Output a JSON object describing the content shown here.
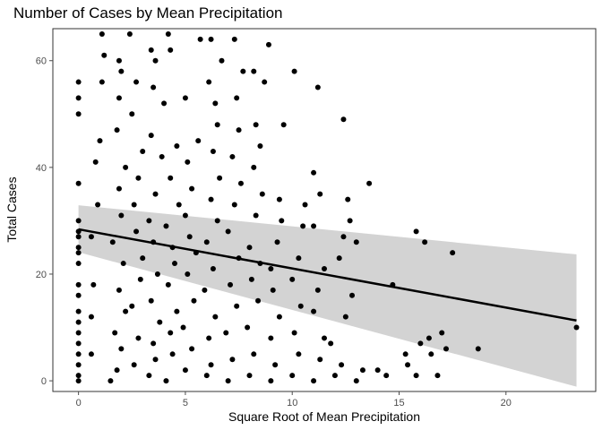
{
  "chart_data": {
    "type": "scatter",
    "title": "Number of Cases by Mean Precipitation",
    "xlabel": "Square Root of Mean Precipitation",
    "ylabel": "Total Cases",
    "xlim": [
      -1.2,
      24.2
    ],
    "ylim": [
      -2,
      66
    ],
    "xticks": [
      0,
      5,
      10,
      15,
      20
    ],
    "yticks": [
      0,
      20,
      40,
      60
    ],
    "grid": false,
    "legend": "none",
    "colors": {
      "points": "#000000",
      "line": "#000000",
      "band": "#d3d3d3",
      "panel_border": "#333333",
      "ticks": "#4d4d4d"
    },
    "trend": {
      "x": [
        0,
        23.3
      ],
      "y": [
        28.4,
        11.3
      ],
      "ci_lower": [
        24.1,
        -1.1
      ],
      "ci_upper": [
        32.9,
        23.7
      ]
    },
    "points": [
      [
        0,
        0
      ],
      [
        0,
        1
      ],
      [
        0,
        3
      ],
      [
        0,
        5
      ],
      [
        0,
        7
      ],
      [
        0,
        9
      ],
      [
        0,
        11
      ],
      [
        0,
        13
      ],
      [
        0,
        16
      ],
      [
        0,
        18
      ],
      [
        0,
        22
      ],
      [
        0,
        24
      ],
      [
        0,
        25
      ],
      [
        0,
        27
      ],
      [
        0,
        28
      ],
      [
        0,
        30
      ],
      [
        0,
        37
      ],
      [
        0,
        50
      ],
      [
        0,
        53
      ],
      [
        0,
        56
      ],
      [
        0.6,
        5
      ],
      [
        0.6,
        12
      ],
      [
        0.7,
        18
      ],
      [
        0.6,
        27
      ],
      [
        0.9,
        33
      ],
      [
        0.8,
        41
      ],
      [
        1.0,
        45
      ],
      [
        1.1,
        56
      ],
      [
        1.2,
        61
      ],
      [
        1.1,
        65
      ],
      [
        1.5,
        0
      ],
      [
        1.8,
        2
      ],
      [
        2.0,
        6
      ],
      [
        1.7,
        9
      ],
      [
        2.2,
        13
      ],
      [
        1.9,
        17
      ],
      [
        2.1,
        22
      ],
      [
        1.6,
        26
      ],
      [
        2.0,
        31
      ],
      [
        1.9,
        36
      ],
      [
        2.2,
        40
      ],
      [
        1.8,
        47
      ],
      [
        1.9,
        53
      ],
      [
        2.0,
        58
      ],
      [
        1.9,
        60
      ],
      [
        2.6,
        3
      ],
      [
        2.8,
        8
      ],
      [
        2.5,
        14
      ],
      [
        2.9,
        19
      ],
      [
        3.0,
        23
      ],
      [
        2.7,
        28
      ],
      [
        2.6,
        33
      ],
      [
        2.8,
        38
      ],
      [
        3.0,
        43
      ],
      [
        2.5,
        50
      ],
      [
        2.7,
        56
      ],
      [
        2.4,
        65
      ],
      [
        3.3,
        1
      ],
      [
        3.6,
        4
      ],
      [
        3.5,
        7
      ],
      [
        3.8,
        11
      ],
      [
        3.4,
        15
      ],
      [
        3.7,
        20
      ],
      [
        3.5,
        26
      ],
      [
        3.3,
        30
      ],
      [
        3.6,
        35
      ],
      [
        3.9,
        42
      ],
      [
        3.4,
        46
      ],
      [
        3.5,
        55
      ],
      [
        3.6,
        60
      ],
      [
        3.4,
        62
      ],
      [
        4.1,
        0
      ],
      [
        4.4,
        5
      ],
      [
        4.3,
        9
      ],
      [
        4.6,
        13
      ],
      [
        4.2,
        18
      ],
      [
        4.5,
        22
      ],
      [
        4.4,
        25
      ],
      [
        4.1,
        29
      ],
      [
        4.7,
        33
      ],
      [
        4.3,
        38
      ],
      [
        4.6,
        44
      ],
      [
        4.0,
        52
      ],
      [
        4.3,
        62
      ],
      [
        4.2,
        65
      ],
      [
        5.0,
        2
      ],
      [
        5.3,
        6
      ],
      [
        4.9,
        10
      ],
      [
        5.4,
        15
      ],
      [
        5.1,
        20
      ],
      [
        5.5,
        24
      ],
      [
        5.2,
        27
      ],
      [
        5.0,
        31
      ],
      [
        5.3,
        36
      ],
      [
        5.1,
        41
      ],
      [
        5.6,
        45
      ],
      [
        5.0,
        53
      ],
      [
        5.7,
        64
      ],
      [
        6.0,
        1
      ],
      [
        6.2,
        3
      ],
      [
        6.1,
        8
      ],
      [
        6.4,
        12
      ],
      [
        5.9,
        17
      ],
      [
        6.3,
        21
      ],
      [
        6.0,
        26
      ],
      [
        6.5,
        30
      ],
      [
        6.2,
        34
      ],
      [
        6.6,
        38
      ],
      [
        6.3,
        43
      ],
      [
        6.5,
        48
      ],
      [
        6.4,
        52
      ],
      [
        6.1,
        56
      ],
      [
        6.7,
        60
      ],
      [
        6.2,
        64
      ],
      [
        7.0,
        0
      ],
      [
        7.2,
        4
      ],
      [
        6.9,
        9
      ],
      [
        7.4,
        14
      ],
      [
        7.1,
        18
      ],
      [
        7.5,
        23
      ],
      [
        7.0,
        28
      ],
      [
        7.3,
        33
      ],
      [
        7.6,
        37
      ],
      [
        7.2,
        42
      ],
      [
        7.5,
        47
      ],
      [
        7.4,
        53
      ],
      [
        7.7,
        58
      ],
      [
        7.3,
        64
      ],
      [
        8.0,
        1
      ],
      [
        8.2,
        5
      ],
      [
        7.9,
        10
      ],
      [
        8.4,
        15
      ],
      [
        8.1,
        19
      ],
      [
        8.5,
        22
      ],
      [
        8.0,
        25
      ],
      [
        8.3,
        31
      ],
      [
        8.6,
        35
      ],
      [
        8.2,
        40
      ],
      [
        8.5,
        44
      ],
      [
        8.3,
        48
      ],
      [
        8.7,
        56
      ],
      [
        8.2,
        58
      ],
      [
        8.9,
        63
      ],
      [
        9.0,
        0
      ],
      [
        9.2,
        3
      ],
      [
        9.0,
        8
      ],
      [
        9.4,
        12
      ],
      [
        9.1,
        17
      ],
      [
        9.0,
        21
      ],
      [
        9.3,
        26
      ],
      [
        9.5,
        30
      ],
      [
        9.4,
        34
      ],
      [
        9.6,
        48
      ],
      [
        10.0,
        1
      ],
      [
        10.3,
        5
      ],
      [
        10.1,
        9
      ],
      [
        10.4,
        14
      ],
      [
        10.0,
        19
      ],
      [
        10.3,
        23
      ],
      [
        10.5,
        29
      ],
      [
        10.6,
        33
      ],
      [
        10.1,
        58
      ],
      [
        11.0,
        0
      ],
      [
        11.3,
        4
      ],
      [
        11.5,
        8
      ],
      [
        11.0,
        13
      ],
      [
        11.2,
        17
      ],
      [
        11.5,
        21
      ],
      [
        11.0,
        29
      ],
      [
        11.3,
        35
      ],
      [
        11.0,
        39
      ],
      [
        11.2,
        55
      ],
      [
        12.0,
        1
      ],
      [
        12.3,
        3
      ],
      [
        11.8,
        7
      ],
      [
        12.5,
        12
      ],
      [
        12.2,
        23
      ],
      [
        12.4,
        27
      ],
      [
        12.6,
        34
      ],
      [
        12.7,
        30
      ],
      [
        12.4,
        49
      ],
      [
        13.0,
        0
      ],
      [
        13.3,
        2
      ],
      [
        12.8,
        16
      ],
      [
        13.6,
        37
      ],
      [
        13.0,
        26
      ],
      [
        14.0,
        2
      ],
      [
        14.4,
        1
      ],
      [
        14.7,
        18
      ],
      [
        15.3,
        5
      ],
      [
        15.4,
        3
      ],
      [
        15.8,
        1
      ],
      [
        16.0,
        7
      ],
      [
        15.8,
        28
      ],
      [
        16.2,
        26
      ],
      [
        16.4,
        8
      ],
      [
        16.5,
        5
      ],
      [
        16.8,
        1
      ],
      [
        17.0,
        9
      ],
      [
        17.2,
        6
      ],
      [
        17.5,
        24
      ],
      [
        18.7,
        6
      ],
      [
        23.3,
        10
      ]
    ]
  }
}
